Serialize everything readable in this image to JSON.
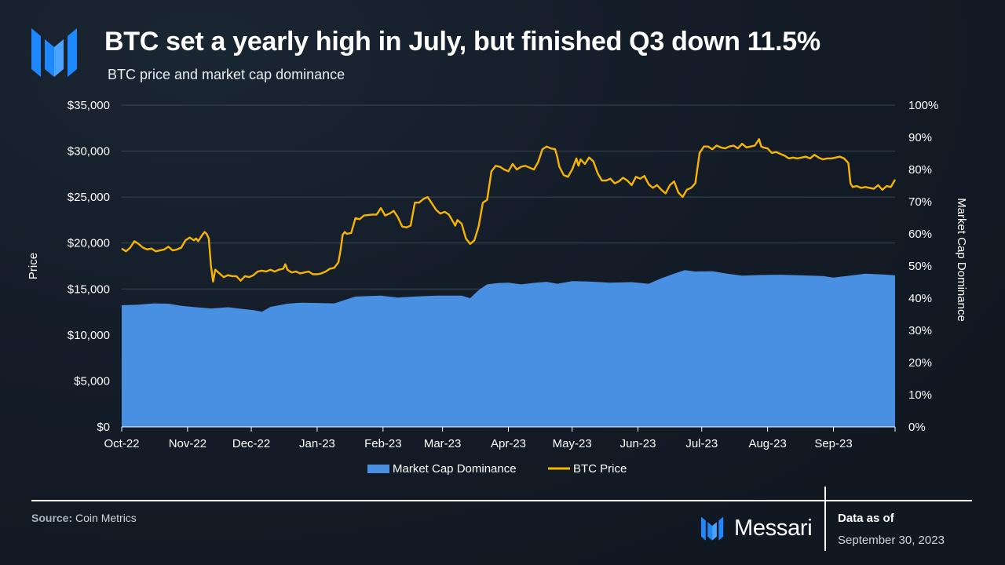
{
  "header": {
    "title": "BTC set a yearly high in July, but finished Q3 down 11.5%",
    "subtitle": "BTC price and market cap dominance"
  },
  "footer": {
    "source_label": "Source:",
    "source_value": "Coin Metrics",
    "brand": "Messari",
    "as_of_label": "Data as of",
    "as_of_date": "September 30, 2023"
  },
  "colors": {
    "dominance": "#4a90e2",
    "price": "#f7b500",
    "grid": "#3a4654",
    "brand_blue": "#2f8cf0"
  },
  "chart_data": {
    "type": "area+line",
    "title": "BTC price and market cap dominance",
    "xlabel": "",
    "ylabel": "Price",
    "y2label": "Market Cap Dominance",
    "ylim": [
      0,
      35000
    ],
    "y2lim": [
      0,
      100
    ],
    "yticks": [
      "$0",
      "$5,000",
      "$10,000",
      "$15,000",
      "$20,000",
      "$25,000",
      "$30,000",
      "$35,000"
    ],
    "y2ticks": [
      "0%",
      "10%",
      "20%",
      "30%",
      "40%",
      "50%",
      "60%",
      "70%",
      "80%",
      "90%",
      "100%"
    ],
    "x_range_days": [
      0,
      364
    ],
    "xticks": [
      {
        "label": "Oct-22",
        "day": 0
      },
      {
        "label": "Nov-22",
        "day": 31
      },
      {
        "label": "Dec-22",
        "day": 61
      },
      {
        "label": "Jan-23",
        "day": 92
      },
      {
        "label": "Feb-23",
        "day": 123
      },
      {
        "label": "Mar-23",
        "day": 151
      },
      {
        "label": "Apr-23",
        "day": 182
      },
      {
        "label": "May-23",
        "day": 212
      },
      {
        "label": "Jun-23",
        "day": 243
      },
      {
        "label": "Jul-23",
        "day": 273
      },
      {
        "label": "Aug-23",
        "day": 304
      },
      {
        "label": "Sep-23",
        "day": 335
      }
    ],
    "legend": "bottom-center",
    "series": [
      {
        "name": "Market Cap Dominance",
        "kind": "area",
        "axis": "right",
        "unit": "%",
        "points": [
          [
            0,
            37.8
          ],
          [
            8,
            38.0
          ],
          [
            15,
            38.4
          ],
          [
            22,
            38.3
          ],
          [
            28,
            37.6
          ],
          [
            35,
            37.2
          ],
          [
            42,
            36.8
          ],
          [
            50,
            37.2
          ],
          [
            55,
            36.8
          ],
          [
            62,
            36.3
          ],
          [
            66,
            35.8
          ],
          [
            70,
            37.3
          ],
          [
            78,
            38.3
          ],
          [
            85,
            38.6
          ],
          [
            92,
            38.5
          ],
          [
            100,
            38.4
          ],
          [
            110,
            40.5
          ],
          [
            122,
            40.8
          ],
          [
            130,
            40.2
          ],
          [
            138,
            40.5
          ],
          [
            148,
            40.8
          ],
          [
            160,
            40.8
          ],
          [
            164,
            40.0
          ],
          [
            168,
            42.5
          ],
          [
            172,
            44.3
          ],
          [
            177,
            44.7
          ],
          [
            182,
            44.8
          ],
          [
            188,
            44.3
          ],
          [
            195,
            44.8
          ],
          [
            200,
            45.1
          ],
          [
            205,
            44.5
          ],
          [
            212,
            45.3
          ],
          [
            220,
            45.2
          ],
          [
            230,
            44.8
          ],
          [
            240,
            45.0
          ],
          [
            248,
            44.5
          ],
          [
            254,
            46.2
          ],
          [
            260,
            47.6
          ],
          [
            265,
            48.7
          ],
          [
            270,
            48.3
          ],
          [
            278,
            48.4
          ],
          [
            285,
            47.6
          ],
          [
            292,
            47.0
          ],
          [
            300,
            47.2
          ],
          [
            310,
            47.3
          ],
          [
            320,
            47.1
          ],
          [
            330,
            46.9
          ],
          [
            335,
            46.4
          ],
          [
            345,
            47.2
          ],
          [
            350,
            47.6
          ],
          [
            358,
            47.4
          ],
          [
            364,
            47.1
          ]
        ]
      },
      {
        "name": "BTC Price",
        "kind": "line",
        "axis": "left",
        "unit": "USD",
        "points": [
          [
            0,
            19400
          ],
          [
            2,
            19100
          ],
          [
            4,
            19500
          ],
          [
            6,
            20200
          ],
          [
            8,
            19900
          ],
          [
            10,
            19500
          ],
          [
            12,
            19300
          ],
          [
            14,
            19400
          ],
          [
            16,
            19100
          ],
          [
            18,
            19200
          ],
          [
            20,
            19300
          ],
          [
            22,
            19600
          ],
          [
            24,
            19200
          ],
          [
            26,
            19300
          ],
          [
            28,
            19500
          ],
          [
            30,
            20300
          ],
          [
            32,
            20600
          ],
          [
            34,
            20300
          ],
          [
            35,
            20500
          ],
          [
            36,
            20200
          ],
          [
            38,
            20900
          ],
          [
            39,
            21200
          ],
          [
            40,
            21000
          ],
          [
            41,
            20500
          ],
          [
            42,
            17500
          ],
          [
            43,
            15800
          ],
          [
            44,
            17100
          ],
          [
            46,
            16700
          ],
          [
            48,
            16300
          ],
          [
            50,
            16500
          ],
          [
            52,
            16400
          ],
          [
            54,
            16400
          ],
          [
            56,
            15900
          ],
          [
            58,
            16400
          ],
          [
            60,
            16300
          ],
          [
            62,
            16500
          ],
          [
            64,
            16900
          ],
          [
            66,
            17000
          ],
          [
            68,
            16900
          ],
          [
            70,
            17100
          ],
          [
            72,
            16900
          ],
          [
            74,
            17100
          ],
          [
            76,
            17200
          ],
          [
            77,
            17700
          ],
          [
            78,
            17100
          ],
          [
            80,
            16800
          ],
          [
            82,
            16900
          ],
          [
            84,
            16700
          ],
          [
            86,
            16800
          ],
          [
            88,
            16900
          ],
          [
            90,
            16600
          ],
          [
            92,
            16600
          ],
          [
            94,
            16700
          ],
          [
            96,
            16900
          ],
          [
            98,
            17200
          ],
          [
            100,
            17300
          ],
          [
            102,
            17900
          ],
          [
            103,
            19200
          ],
          [
            104,
            20900
          ],
          [
            105,
            21200
          ],
          [
            106,
            21000
          ],
          [
            108,
            21100
          ],
          [
            110,
            22700
          ],
          [
            112,
            22600
          ],
          [
            114,
            23000
          ],
          [
            118,
            23100
          ],
          [
            120,
            23100
          ],
          [
            122,
            23800
          ],
          [
            124,
            23000
          ],
          [
            126,
            23200
          ],
          [
            128,
            23500
          ],
          [
            130,
            22800
          ],
          [
            132,
            21800
          ],
          [
            134,
            21700
          ],
          [
            136,
            21900
          ],
          [
            138,
            24400
          ],
          [
            140,
            24400
          ],
          [
            142,
            24800
          ],
          [
            144,
            25000
          ],
          [
            146,
            24300
          ],
          [
            148,
            23600
          ],
          [
            150,
            23200
          ],
          [
            152,
            23400
          ],
          [
            154,
            23100
          ],
          [
            156,
            22300
          ],
          [
            157,
            21900
          ],
          [
            158,
            22500
          ],
          [
            160,
            22100
          ],
          [
            162,
            20500
          ],
          [
            164,
            19900
          ],
          [
            166,
            20300
          ],
          [
            168,
            21800
          ],
          [
            170,
            24400
          ],
          [
            172,
            24700
          ],
          [
            174,
            27800
          ],
          [
            176,
            28400
          ],
          [
            178,
            28300
          ],
          [
            180,
            28000
          ],
          [
            182,
            27800
          ],
          [
            184,
            28600
          ],
          [
            186,
            28000
          ],
          [
            188,
            28300
          ],
          [
            190,
            28400
          ],
          [
            192,
            28200
          ],
          [
            194,
            28000
          ],
          [
            196,
            28800
          ],
          [
            198,
            30200
          ],
          [
            200,
            30500
          ],
          [
            202,
            30300
          ],
          [
            204,
            30200
          ],
          [
            205,
            29400
          ],
          [
            206,
            28300
          ],
          [
            208,
            27400
          ],
          [
            210,
            27200
          ],
          [
            212,
            28000
          ],
          [
            214,
            29200
          ],
          [
            215,
            28400
          ],
          [
            216,
            29100
          ],
          [
            218,
            28600
          ],
          [
            220,
            29300
          ],
          [
            222,
            28900
          ],
          [
            224,
            27600
          ],
          [
            226,
            26800
          ],
          [
            228,
            26800
          ],
          [
            230,
            27000
          ],
          [
            232,
            26500
          ],
          [
            234,
            26700
          ],
          [
            236,
            27100
          ],
          [
            238,
            26800
          ],
          [
            240,
            26300
          ],
          [
            242,
            27200
          ],
          [
            244,
            27000
          ],
          [
            246,
            27300
          ],
          [
            248,
            26400
          ],
          [
            250,
            26000
          ],
          [
            252,
            26300
          ],
          [
            254,
            25800
          ],
          [
            256,
            25400
          ],
          [
            258,
            26300
          ],
          [
            260,
            26700
          ],
          [
            262,
            25500
          ],
          [
            264,
            25000
          ],
          [
            266,
            25800
          ],
          [
            268,
            26000
          ],
          [
            270,
            26500
          ],
          [
            272,
            29800
          ],
          [
            274,
            30500
          ],
          [
            276,
            30500
          ],
          [
            278,
            30200
          ],
          [
            280,
            30600
          ],
          [
            282,
            30400
          ],
          [
            284,
            30300
          ],
          [
            286,
            30500
          ],
          [
            288,
            30600
          ],
          [
            290,
            30300
          ],
          [
            292,
            30800
          ],
          [
            294,
            30400
          ],
          [
            296,
            30500
          ],
          [
            298,
            30600
          ],
          [
            300,
            31300
          ],
          [
            301,
            30500
          ],
          [
            302,
            30400
          ],
          [
            304,
            30300
          ],
          [
            306,
            29800
          ],
          [
            308,
            29900
          ],
          [
            310,
            29700
          ],
          [
            312,
            29500
          ],
          [
            314,
            29200
          ],
          [
            316,
            29300
          ],
          [
            318,
            29200
          ],
          [
            320,
            29300
          ],
          [
            322,
            29400
          ],
          [
            324,
            29200
          ],
          [
            326,
            29600
          ],
          [
            328,
            29300
          ],
          [
            330,
            29100
          ],
          [
            332,
            29200
          ],
          [
            334,
            29200
          ],
          [
            336,
            29300
          ],
          [
            338,
            29400
          ],
          [
            340,
            29200
          ],
          [
            342,
            28700
          ],
          [
            343,
            26500
          ],
          [
            344,
            26100
          ],
          [
            346,
            26200
          ],
          [
            348,
            26000
          ],
          [
            350,
            26100
          ],
          [
            352,
            26000
          ],
          [
            354,
            25900
          ],
          [
            356,
            26300
          ],
          [
            358,
            25800
          ],
          [
            360,
            26200
          ],
          [
            362,
            26100
          ],
          [
            364,
            26900
          ]
        ]
      }
    ]
  }
}
